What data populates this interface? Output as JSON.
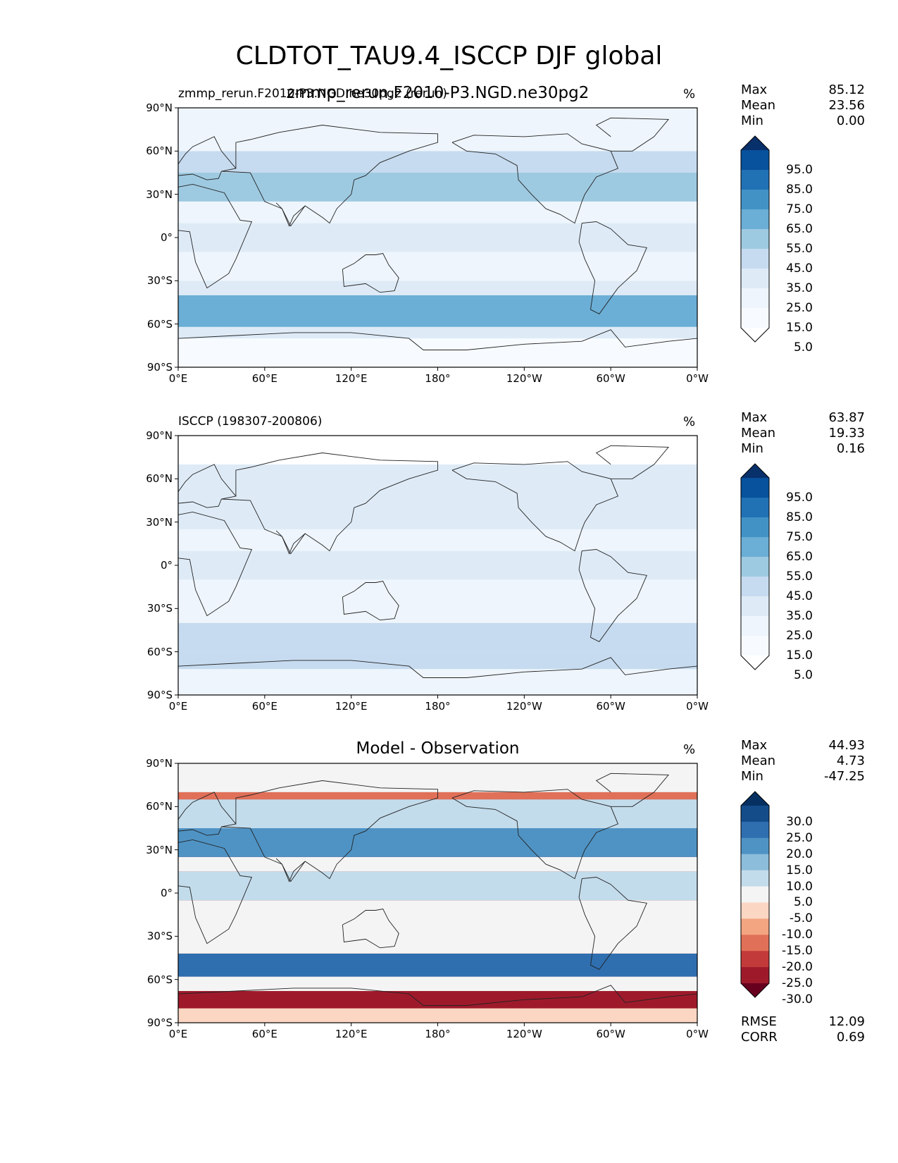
{
  "title": "CLDTOT_TAU9.4_ISCCP DJF global",
  "chart_data": [
    {
      "type": "heatmap",
      "panel": "test",
      "subtitle_left": "zmmp_rerun.F2010-P3.NGD.ne30pg2 (rerun)",
      "subtitle_center": "zmmp_rerun.F2010-P3.NGD.ne30pg2",
      "units": "%",
      "stats": [
        {
          "name": "Max",
          "value": "85.12"
        },
        {
          "name": "Mean",
          "value": "23.56"
        },
        {
          "name": "Min",
          "value": "0.00"
        }
      ],
      "x_ticks": [
        "0°E",
        "60°E",
        "120°E",
        "180°",
        "120°W",
        "60°W",
        "0°W"
      ],
      "y_ticks": [
        "90°N",
        "60°N",
        "30°N",
        "0°",
        "30°S",
        "60°S",
        "90°S"
      ],
      "xlim": [
        0,
        360
      ],
      "ylim": [
        -90,
        90
      ],
      "colorbar_levels": [
        "95.0",
        "85.0",
        "75.0",
        "65.0",
        "55.0",
        "45.0",
        "35.0",
        "25.0",
        "15.0",
        "5.0"
      ],
      "colormap": [
        "#08306b",
        "#08519c",
        "#2171b5",
        "#4292c6",
        "#6baed6",
        "#9ecae1",
        "#c6dbef",
        "#deebf7",
        "#eef5fc",
        "#f7fbff",
        "#ffffff"
      ],
      "bands": [
        {
          "lat": [
            -90,
            -70
          ],
          "value": 5
        },
        {
          "lat": [
            -70,
            -62
          ],
          "value": 25
        },
        {
          "lat": [
            -62,
            -40
          ],
          "value": 55
        },
        {
          "lat": [
            -40,
            -30
          ],
          "value": 30
        },
        {
          "lat": [
            -30,
            -10
          ],
          "value": 20
        },
        {
          "lat": [
            -10,
            10
          ],
          "value": 25
        },
        {
          "lat": [
            10,
            25
          ],
          "value": 15
        },
        {
          "lat": [
            25,
            45
          ],
          "value": 45
        },
        {
          "lat": [
            45,
            60
          ],
          "value": 40
        },
        {
          "lat": [
            60,
            90
          ],
          "value": 15
        }
      ]
    },
    {
      "type": "heatmap",
      "panel": "reference",
      "subtitle_left": "ISCCP (198307-200806)",
      "subtitle_center": "",
      "units": "%",
      "stats": [
        {
          "name": "Max",
          "value": "63.87"
        },
        {
          "name": "Mean",
          "value": "19.33"
        },
        {
          "name": "Min",
          "value": "0.16"
        }
      ],
      "x_ticks": [
        "0°E",
        "60°E",
        "120°E",
        "180°",
        "120°W",
        "60°W",
        "0°W"
      ],
      "y_ticks": [
        "90°N",
        "60°N",
        "30°N",
        "0°",
        "30°S",
        "60°S",
        "90°S"
      ],
      "xlim": [
        0,
        360
      ],
      "ylim": [
        -90,
        90
      ],
      "colorbar_levels": [
        "95.0",
        "85.0",
        "75.0",
        "65.0",
        "55.0",
        "45.0",
        "35.0",
        "25.0",
        "15.0",
        "5.0"
      ],
      "colormap": [
        "#08306b",
        "#08519c",
        "#2171b5",
        "#4292c6",
        "#6baed6",
        "#9ecae1",
        "#c6dbef",
        "#deebf7",
        "#eef5fc",
        "#f7fbff",
        "#ffffff"
      ],
      "bands": [
        {
          "lat": [
            -90,
            -72
          ],
          "value": 20
        },
        {
          "lat": [
            -72,
            -60
          ],
          "value": 35
        },
        {
          "lat": [
            -60,
            -40
          ],
          "value": 35
        },
        {
          "lat": [
            -40,
            -10
          ],
          "value": 20
        },
        {
          "lat": [
            -10,
            10
          ],
          "value": 25
        },
        {
          "lat": [
            10,
            25
          ],
          "value": 15
        },
        {
          "lat": [
            25,
            45
          ],
          "value": 30
        },
        {
          "lat": [
            45,
            70
          ],
          "value": 30
        },
        {
          "lat": [
            70,
            90
          ],
          "value": 0
        }
      ]
    },
    {
      "type": "heatmap",
      "panel": "difference",
      "subtitle_left": "",
      "subtitle_center": "Model - Observation",
      "units": "%",
      "stats": [
        {
          "name": "Max",
          "value": "44.93"
        },
        {
          "name": "Mean",
          "value": "4.73"
        },
        {
          "name": "Min",
          "value": "-47.25"
        }
      ],
      "bottom_stats": [
        {
          "name": "RMSE",
          "value": "12.09"
        },
        {
          "name": "CORR",
          "value": "0.69"
        }
      ],
      "x_ticks": [
        "0°E",
        "60°E",
        "120°E",
        "180°",
        "120°W",
        "60°W",
        "0°W"
      ],
      "y_ticks": [
        "90°N",
        "60°N",
        "30°N",
        "0°",
        "30°S",
        "60°S",
        "90°S"
      ],
      "xlim": [
        0,
        360
      ],
      "ylim": [
        -90,
        90
      ],
      "colorbar_levels": [
        "30.0",
        "25.0",
        "20.0",
        "15.0",
        "10.0",
        "5.0",
        "-5.0",
        "-10.0",
        "-15.0",
        "-20.0",
        "-25.0",
        "-30.0"
      ],
      "colormap": [
        "#053061",
        "#144c8a",
        "#2f6fb0",
        "#4f93c4",
        "#8cbdda",
        "#c3dcec",
        "#f4f4f4",
        "#fbd7c3",
        "#f3a582",
        "#e07058",
        "#c23a3a",
        "#9e1a2b",
        "#67001f"
      ],
      "bands": [
        {
          "lat": [
            -90,
            -80
          ],
          "value": -10
        },
        {
          "lat": [
            -80,
            -68
          ],
          "value": -28
        },
        {
          "lat": [
            -68,
            -58
          ],
          "value": 0
        },
        {
          "lat": [
            -58,
            -42
          ],
          "value": 20
        },
        {
          "lat": [
            -42,
            -5
          ],
          "value": 0
        },
        {
          "lat": [
            -5,
            15
          ],
          "value": 5
        },
        {
          "lat": [
            15,
            25
          ],
          "value": 0
        },
        {
          "lat": [
            25,
            45
          ],
          "value": 18
        },
        {
          "lat": [
            45,
            65
          ],
          "value": 5
        },
        {
          "lat": [
            65,
            70
          ],
          "value": -20
        },
        {
          "lat": [
            70,
            90
          ],
          "value": 0
        }
      ]
    }
  ]
}
